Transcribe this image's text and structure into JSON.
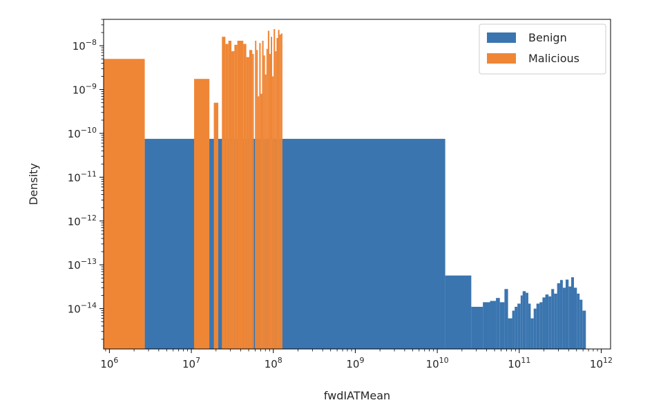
{
  "chart_data": {
    "type": "histogram",
    "xlabel": "fwdIATMean",
    "ylabel": "Density",
    "xscale": "log",
    "yscale": "log",
    "xlim": [
      850000,
      1300000000000
    ],
    "ylim": [
      1.2e-15,
      4e-08
    ],
    "x_ticks": [
      {
        "value": 1000000,
        "mantissa": "10",
        "exponent": "6"
      },
      {
        "value": 10000000,
        "mantissa": "10",
        "exponent": "7"
      },
      {
        "value": 100000000,
        "mantissa": "10",
        "exponent": "8"
      },
      {
        "value": 1000000000,
        "mantissa": "10",
        "exponent": "9"
      },
      {
        "value": 10000000000,
        "mantissa": "10",
        "exponent": "10"
      },
      {
        "value": 100000000000,
        "mantissa": "10",
        "exponent": "11"
      },
      {
        "value": 1000000000000,
        "mantissa": "10",
        "exponent": "12"
      }
    ],
    "y_ticks": [
      {
        "value": 1e-14,
        "mantissa": "10",
        "exponent": "−14"
      },
      {
        "value": 1e-13,
        "mantissa": "10",
        "exponent": "−13"
      },
      {
        "value": 1e-12,
        "mantissa": "10",
        "exponent": "−12"
      },
      {
        "value": 1e-11,
        "mantissa": "10",
        "exponent": "−11"
      },
      {
        "value": 1e-10,
        "mantissa": "10",
        "exponent": "−10"
      },
      {
        "value": 1e-09,
        "mantissa": "10",
        "exponent": "−9"
      },
      {
        "value": 1e-08,
        "mantissa": "10",
        "exponent": "−8"
      }
    ],
    "legend": {
      "position": "upper right",
      "entries": [
        "Benign",
        "Malicious"
      ]
    },
    "series": [
      {
        "name": "Benign",
        "color": "#3a75af",
        "bins": [
          {
            "x0": 2700000,
            "x1": 12500000000,
            "y": 7.5e-11
          },
          {
            "x0": 12500000000,
            "x1": 26000000000,
            "y": 5.7e-14
          },
          {
            "x0": 26000000000,
            "x1": 36000000000,
            "y": 1.1e-14
          },
          {
            "x0": 36000000000,
            "x1": 44000000000,
            "y": 1.4e-14
          },
          {
            "x0": 44000000000,
            "x1": 52000000000,
            "y": 1.5e-14
          },
          {
            "x0": 52000000000,
            "x1": 58000000000,
            "y": 1.75e-14
          },
          {
            "x0": 58000000000,
            "x1": 66000000000,
            "y": 1.4e-14
          },
          {
            "x0": 66000000000,
            "x1": 73000000000,
            "y": 2.8e-14
          },
          {
            "x0": 73000000000,
            "x1": 82000000000,
            "y": 6e-15
          },
          {
            "x0": 82000000000,
            "x1": 88000000000,
            "y": 9e-15
          },
          {
            "x0": 88000000000,
            "x1": 95000000000,
            "y": 1.1e-14
          },
          {
            "x0": 95000000000,
            "x1": 104000000000,
            "y": 1.3e-14
          },
          {
            "x0": 104000000000,
            "x1": 110000000000,
            "y": 2e-14
          },
          {
            "x0": 110000000000,
            "x1": 120000000000,
            "y": 2.5e-14
          },
          {
            "x0": 120000000000,
            "x1": 129000000000,
            "y": 2.3e-14
          },
          {
            "x0": 129000000000,
            "x1": 138000000000,
            "y": 1.3e-14
          },
          {
            "x0": 138000000000,
            "x1": 150000000000,
            "y": 6e-15
          },
          {
            "x0": 150000000000,
            "x1": 162000000000,
            "y": 1e-14
          },
          {
            "x0": 162000000000,
            "x1": 177000000000,
            "y": 1.3e-14
          },
          {
            "x0": 177000000000,
            "x1": 192000000000,
            "y": 1.4e-14
          },
          {
            "x0": 192000000000,
            "x1": 208000000000,
            "y": 1.8e-14
          },
          {
            "x0": 208000000000,
            "x1": 228000000000,
            "y": 2.1e-14
          },
          {
            "x0": 228000000000,
            "x1": 246000000000,
            "y": 1.9e-14
          },
          {
            "x0": 246000000000,
            "x1": 266000000000,
            "y": 2.8e-14
          },
          {
            "x0": 266000000000,
            "x1": 290000000000,
            "y": 2.2e-14
          },
          {
            "x0": 290000000000,
            "x1": 315000000000,
            "y": 3.8e-14
          },
          {
            "x0": 315000000000,
            "x1": 340000000000,
            "y": 4.5e-14
          },
          {
            "x0": 340000000000,
            "x1": 368000000000,
            "y": 3e-14
          },
          {
            "x0": 368000000000,
            "x1": 400000000000,
            "y": 4.6e-14
          },
          {
            "x0": 400000000000,
            "x1": 430000000000,
            "y": 3.2e-14
          },
          {
            "x0": 430000000000,
            "x1": 465000000000,
            "y": 5.2e-14
          },
          {
            "x0": 465000000000,
            "x1": 505000000000,
            "y": 3e-14
          },
          {
            "x0": 505000000000,
            "x1": 545000000000,
            "y": 2.2e-14
          },
          {
            "x0": 545000000000,
            "x1": 590000000000,
            "y": 1.6e-14
          },
          {
            "x0": 590000000000,
            "x1": 650000000000,
            "y": 9e-15
          }
        ]
      },
      {
        "name": "Malicious",
        "color": "#ef8636",
        "bins": [
          {
            "x0": 850000,
            "x1": 2700000,
            "y": 5e-09
          },
          {
            "x0": 10800000,
            "x1": 16600000,
            "y": 1.75e-09
          },
          {
            "x0": 18800000,
            "x1": 21300000,
            "y": 5e-10
          },
          {
            "x0": 23600000,
            "x1": 26000000,
            "y": 1.6e-08
          },
          {
            "x0": 26000000,
            "x1": 28300000,
            "y": 1.1e-08
          },
          {
            "x0": 28300000,
            "x1": 30800000,
            "y": 1.3e-08
          },
          {
            "x0": 30800000,
            "x1": 33500000,
            "y": 7.5e-09
          },
          {
            "x0": 33500000,
            "x1": 36400000,
            "y": 1.05e-08
          },
          {
            "x0": 36400000,
            "x1": 39600000,
            "y": 1.3e-08
          },
          {
            "x0": 39600000,
            "x1": 43000000,
            "y": 1.3e-08
          },
          {
            "x0": 43000000,
            "x1": 46800000,
            "y": 1.1e-08
          },
          {
            "x0": 46800000,
            "x1": 50900000,
            "y": 5.5e-09
          },
          {
            "x0": 50900000,
            "x1": 55300000,
            "y": 8e-09
          },
          {
            "x0": 55300000,
            "x1": 57800000,
            "y": 6.5e-09
          },
          {
            "x0": 59800000,
            "x1": 62100000,
            "y": 1.3e-08
          },
          {
            "x0": 62100000,
            "x1": 64600000,
            "y": 8e-09
          },
          {
            "x0": 64600000,
            "x1": 67300000,
            "y": 7e-10
          },
          {
            "x0": 67300000,
            "x1": 70100000,
            "y": 1.15e-08
          },
          {
            "x0": 70100000,
            "x1": 73000000,
            "y": 8e-10
          },
          {
            "x0": 73000000,
            "x1": 76000000,
            "y": 1.3e-08
          },
          {
            "x0": 76000000,
            "x1": 79100000,
            "y": 6e-09
          },
          {
            "x0": 79100000,
            "x1": 82400000,
            "y": 2.2e-09
          },
          {
            "x0": 82400000,
            "x1": 85800000,
            "y": 8.5e-09
          },
          {
            "x0": 85800000,
            "x1": 89300000,
            "y": 2.2e-08
          },
          {
            "x0": 89300000,
            "x1": 93000000,
            "y": 6.5e-09
          },
          {
            "x0": 93000000,
            "x1": 96800000,
            "y": 1.6e-08
          },
          {
            "x0": 96800000,
            "x1": 100800000,
            "y": 2e-09
          },
          {
            "x0": 100800000,
            "x1": 105000000,
            "y": 2.4e-08
          },
          {
            "x0": 105000000,
            "x1": 109400000,
            "y": 7.5e-09
          },
          {
            "x0": 109400000,
            "x1": 114000000,
            "y": 1.5e-08
          },
          {
            "x0": 114000000,
            "x1": 118800000,
            "y": 2.3e-08
          },
          {
            "x0": 118800000,
            "x1": 123800000,
            "y": 1.8e-08
          },
          {
            "x0": 123800000,
            "x1": 129000000,
            "y": 1.9e-08
          }
        ]
      }
    ]
  }
}
